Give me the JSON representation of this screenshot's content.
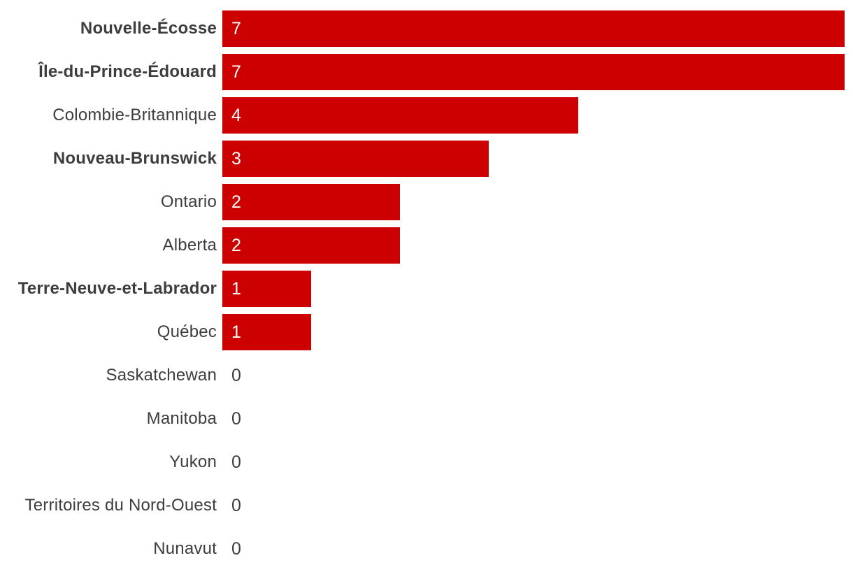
{
  "chart_data": {
    "type": "bar",
    "orientation": "horizontal",
    "title": "",
    "xlabel": "",
    "ylabel": "",
    "xlim": [
      0,
      7
    ],
    "grid": false,
    "legend": false,
    "background_color": "#ffffff",
    "bar_color": "#cc0000",
    "label_color": "#3d3d3d",
    "value_color_inside_bar": "#ffffff",
    "value_color_zero": "#3d3d3d",
    "categories": [
      "Nouvelle-Écosse",
      "Île-du-Prince-Édouard",
      "Colombie-Britannique",
      "Nouveau-Brunswick",
      "Ontario",
      "Alberta",
      "Terre-Neuve-et-Labrador",
      "Québec",
      "Saskatchewan",
      "Manitoba",
      "Yukon",
      "Territoires du Nord-Ouest",
      "Nunavut"
    ],
    "values": [
      7,
      7,
      4,
      3,
      2,
      2,
      1,
      1,
      0,
      0,
      0,
      0,
      0
    ],
    "bold_labels": [
      true,
      true,
      false,
      true,
      false,
      false,
      true,
      false,
      false,
      false,
      false,
      false,
      false
    ]
  }
}
